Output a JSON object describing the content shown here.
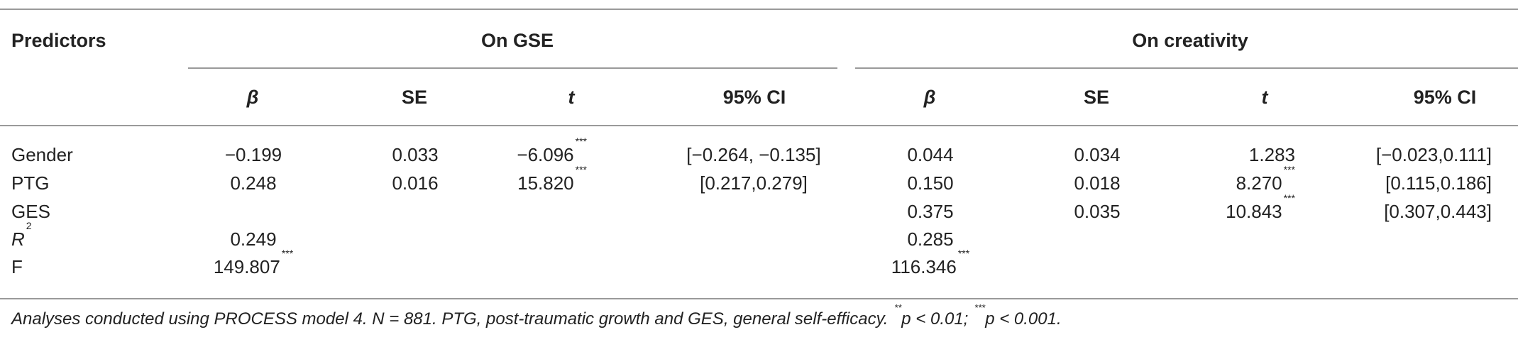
{
  "table": {
    "header": {
      "predictors": "Predictors",
      "group_gse": "On GSE",
      "group_creativity": "On creativity",
      "beta": "β",
      "se": "SE",
      "t": "t",
      "ci": "95% CI"
    },
    "rows": [
      {
        "label": "Gender",
        "label_sup": "",
        "gse_beta": "−0.199",
        "gse_beta_sup": "",
        "gse_se": "0.033",
        "gse_t": "−6.096",
        "gse_t_sup": "***",
        "gse_ci": "[−0.264, −0.135]",
        "cr_beta": "0.044",
        "cr_beta_sup": "",
        "cr_se": "0.034",
        "cr_t": "1.283",
        "cr_t_sup": "",
        "cr_ci": "[−0.023,0.111]"
      },
      {
        "label": "PTG",
        "label_sup": "",
        "gse_beta": "0.248",
        "gse_beta_sup": "",
        "gse_se": "0.016",
        "gse_t": "15.820",
        "gse_t_sup": "***",
        "gse_ci": "[0.217,0.279]",
        "cr_beta": "0.150",
        "cr_beta_sup": "",
        "cr_se": "0.018",
        "cr_t": "8.270",
        "cr_t_sup": "***",
        "cr_ci": "[0.115,0.186]"
      },
      {
        "label": "GES",
        "label_sup": "",
        "gse_beta": "",
        "gse_beta_sup": "",
        "gse_se": "",
        "gse_t": "",
        "gse_t_sup": "",
        "gse_ci": "",
        "cr_beta": "0.375",
        "cr_beta_sup": "",
        "cr_se": "0.035",
        "cr_t": "10.843",
        "cr_t_sup": "***",
        "cr_ci": "[0.307,0.443]"
      },
      {
        "label": "R",
        "label_sup": "2",
        "gse_beta": "0.249",
        "gse_beta_sup": "",
        "gse_se": "",
        "gse_t": "",
        "gse_t_sup": "",
        "gse_ci": "",
        "cr_beta": "0.285",
        "cr_beta_sup": "",
        "cr_se": "",
        "cr_t": "",
        "cr_t_sup": "",
        "cr_ci": ""
      },
      {
        "label": "F",
        "label_sup": "",
        "gse_beta": "149.807",
        "gse_beta_sup": "***",
        "gse_se": "",
        "gse_t": "",
        "gse_t_sup": "",
        "gse_ci": "",
        "cr_beta": "116.346",
        "cr_beta_sup": "***",
        "cr_se": "",
        "cr_t": "",
        "cr_t_sup": "",
        "cr_ci": ""
      }
    ],
    "note": {
      "text1": "Analyses conducted using PROCESS model 4. N = 881. PTG, post-traumatic growth and GES, general self-efficacy. ",
      "sup1": "**",
      "text2": "p < 0.01; ",
      "sup2": "***",
      "text3": "p < 0.001."
    }
  }
}
